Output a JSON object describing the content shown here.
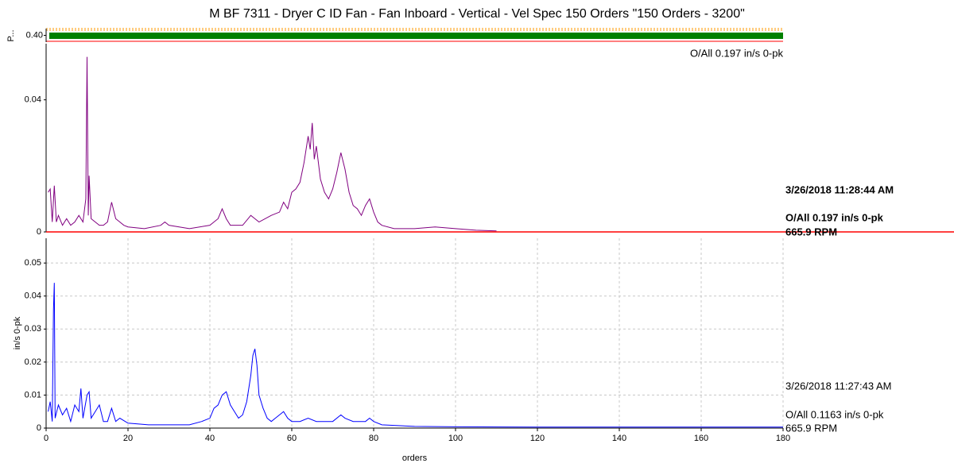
{
  "chart_data": [
    {
      "type": "band",
      "title": "M BF 7311 - Dryer C ID Fan - Fan Inboard - Vertical - Vel Spec 150 Orders \"150 Orders - 3200\"",
      "ylabel": "P...",
      "ylim": [
        0.3,
        0.5
      ],
      "yticks": [
        {
          "value": 0.4,
          "label": "0.40"
        }
      ],
      "color": "#008000"
    },
    {
      "type": "line",
      "color": "#800080",
      "xlim": [
        0,
        180
      ],
      "ylim": [
        0,
        0.057
      ],
      "yticks": [
        0,
        0.04
      ],
      "corner_label": "O/All 0.197 in/s 0-pk",
      "side_labels": [
        "3/26/2018 11:28:44 AM",
        "O/All 0.197 in/s 0-pk",
        "665.9 RPM"
      ],
      "x": [
        0.5,
        1,
        1.5,
        2,
        2.5,
        3,
        4,
        5,
        6,
        7,
        8,
        9,
        9.7,
        10,
        10.3,
        10.5,
        11,
        12,
        13,
        14,
        15,
        16,
        17,
        18,
        19,
        20,
        24,
        28,
        29,
        30,
        35,
        40,
        42,
        43,
        44,
        45,
        48,
        50,
        51,
        52,
        55,
        57,
        58,
        59,
        60,
        61,
        62,
        63,
        64,
        64.5,
        65,
        65.5,
        66,
        67,
        68,
        69,
        70,
        71,
        72,
        73,
        74,
        75,
        76,
        77,
        78,
        79,
        80,
        81,
        82,
        85,
        90,
        95,
        100,
        105,
        110
      ],
      "values": [
        0.012,
        0.013,
        0.003,
        0.014,
        0.003,
        0.005,
        0.002,
        0.004,
        0.002,
        0.003,
        0.005,
        0.003,
        0.01,
        0.053,
        0.005,
        0.017,
        0.004,
        0.003,
        0.002,
        0.002,
        0.003,
        0.009,
        0.004,
        0.003,
        0.002,
        0.0015,
        0.001,
        0.002,
        0.003,
        0.002,
        0.001,
        0.002,
        0.004,
        0.007,
        0.004,
        0.002,
        0.002,
        0.005,
        0.004,
        0.003,
        0.005,
        0.006,
        0.009,
        0.007,
        0.012,
        0.013,
        0.015,
        0.021,
        0.029,
        0.025,
        0.033,
        0.022,
        0.026,
        0.016,
        0.012,
        0.01,
        0.013,
        0.018,
        0.024,
        0.019,
        0.012,
        0.008,
        0.007,
        0.005,
        0.008,
        0.01,
        0.006,
        0.003,
        0.002,
        0.001,
        0.001,
        0.0015,
        0.001,
        0.0005,
        0.0003
      ]
    },
    {
      "type": "line",
      "color": "#0000ff",
      "xlim": [
        0,
        180
      ],
      "ylim": [
        0,
        0.0575
      ],
      "yticks": [
        0,
        0.01,
        0.02,
        0.03,
        0.04,
        0.05
      ],
      "xticks": [
        0,
        20,
        40,
        60,
        80,
        100,
        120,
        140,
        160,
        180
      ],
      "ylabel": "in/s 0-pk",
      "xlabel": "orders",
      "grid": true,
      "side_labels": [
        "3/26/2018 11:27:43 AM",
        "O/All 0.1163 in/s 0-pk",
        "665.9 RPM"
      ],
      "x": [
        0.5,
        1,
        1.5,
        1.8,
        2,
        2.2,
        3,
        4,
        5,
        6,
        7,
        8,
        8.5,
        9,
        10,
        10.5,
        11,
        12,
        13,
        14,
        15,
        16,
        17,
        18,
        20,
        25,
        30,
        35,
        38,
        40,
        41,
        42,
        43,
        44,
        45,
        46,
        47,
        48,
        49,
        50,
        50.5,
        51,
        51.5,
        52,
        53,
        54,
        55,
        56,
        57,
        58,
        59,
        60,
        62,
        64,
        66,
        70,
        72,
        73,
        75,
        78,
        79,
        80,
        82,
        90,
        100,
        120,
        140,
        160,
        180
      ],
      "values": [
        0.005,
        0.008,
        0.002,
        0.036,
        0.044,
        0.003,
        0.007,
        0.004,
        0.006,
        0.002,
        0.007,
        0.005,
        0.012,
        0.003,
        0.01,
        0.011,
        0.003,
        0.005,
        0.007,
        0.002,
        0.002,
        0.006,
        0.002,
        0.003,
        0.0015,
        0.001,
        0.001,
        0.001,
        0.002,
        0.003,
        0.006,
        0.007,
        0.01,
        0.011,
        0.007,
        0.005,
        0.003,
        0.004,
        0.008,
        0.016,
        0.022,
        0.024,
        0.019,
        0.01,
        0.006,
        0.003,
        0.002,
        0.003,
        0.004,
        0.005,
        0.003,
        0.002,
        0.002,
        0.003,
        0.002,
        0.002,
        0.004,
        0.003,
        0.002,
        0.002,
        0.003,
        0.002,
        0.001,
        0.0005,
        0.0004,
        0.0003,
        0.0003,
        0.0003,
        0.0003
      ]
    }
  ]
}
